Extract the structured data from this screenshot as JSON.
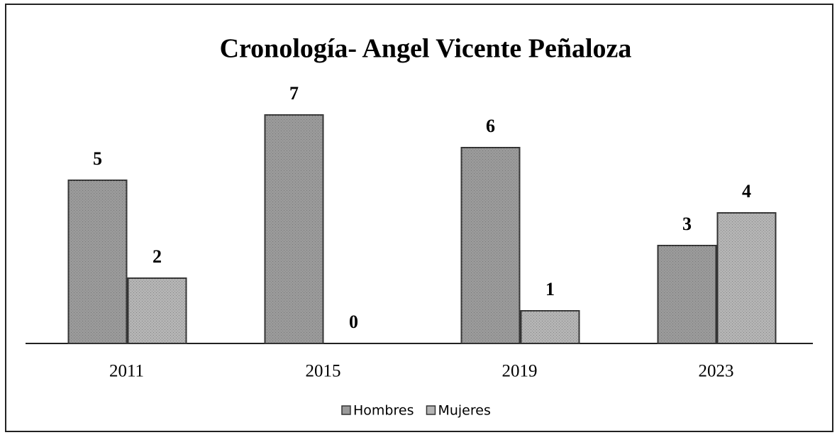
{
  "chart_data": {
    "type": "bar",
    "title": "Cronología- Angel Vicente Peñaloza",
    "categories": [
      "2011",
      "2015",
      "2019",
      "2023"
    ],
    "series": [
      {
        "name": "Hombres",
        "color": "#9a9a9a",
        "values": [
          5,
          7,
          6,
          3
        ]
      },
      {
        "name": "Mujeres",
        "color": "#b4b4b4",
        "values": [
          2,
          0,
          1,
          4
        ]
      }
    ],
    "ylim": [
      0,
      7
    ],
    "legend": "bottom"
  }
}
